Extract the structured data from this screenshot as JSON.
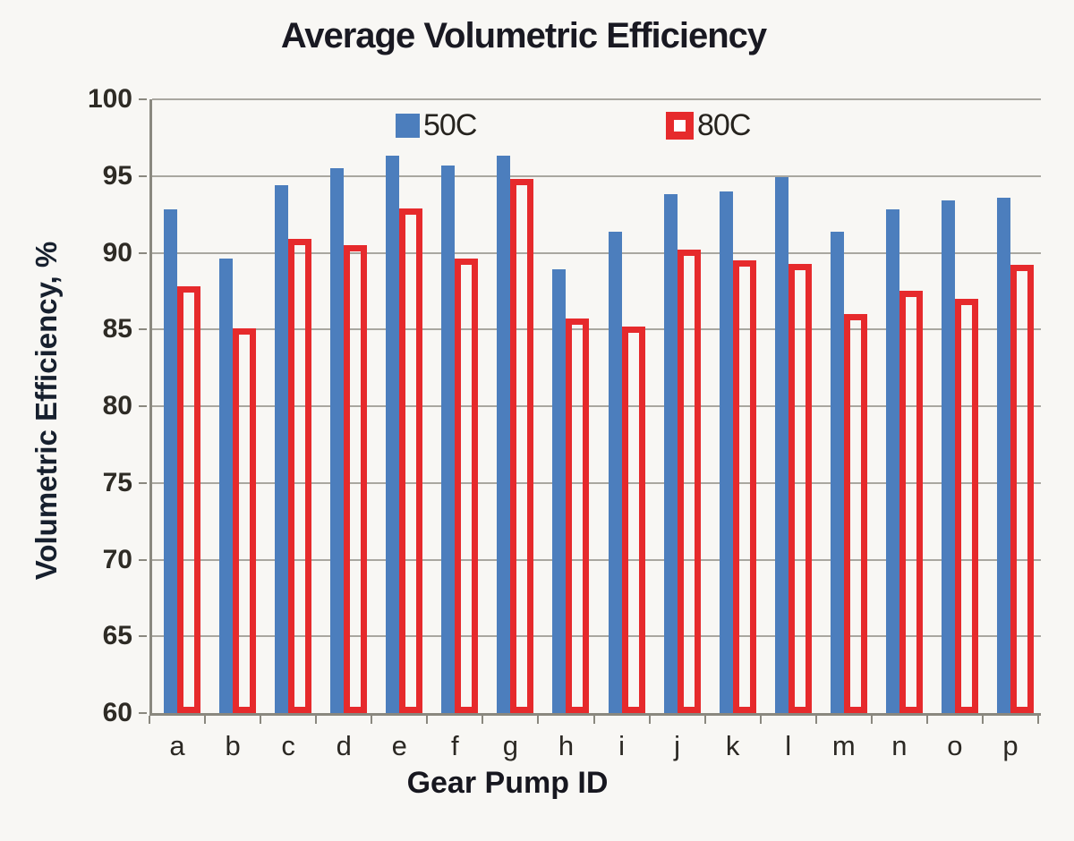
{
  "title": "Average Volumetric Efficiency",
  "chart_data": {
    "type": "bar",
    "title": "Average Volumetric Efficiency",
    "xlabel": "Gear Pump ID",
    "ylabel": "Volumetric Efficiency, %",
    "categories": [
      "a",
      "b",
      "c",
      "d",
      "e",
      "f",
      "g",
      "h",
      "i",
      "j",
      "k",
      "l",
      "m",
      "n",
      "o",
      "p"
    ],
    "series": [
      {
        "name": "50C",
        "style": "solid",
        "color": "#4c7ebd",
        "values": [
          92.8,
          89.6,
          94.4,
          95.5,
          96.3,
          95.7,
          96.3,
          88.9,
          91.4,
          93.8,
          94.0,
          94.9,
          91.4,
          92.8,
          93.4,
          93.6
        ]
      },
      {
        "name": "80C",
        "style": "hollow",
        "color": "#e62a2c",
        "values": [
          87.8,
          85.1,
          90.9,
          90.5,
          92.9,
          89.6,
          94.8,
          85.7,
          85.2,
          90.2,
          89.5,
          89.3,
          86.0,
          87.5,
          87.0,
          89.2
        ]
      }
    ],
    "ylim": [
      60,
      100
    ],
    "yticks": [
      60,
      65,
      70,
      75,
      80,
      85,
      90,
      95,
      100
    ],
    "grid": true,
    "legend_position": "top-inside"
  },
  "colors": {
    "background": "#f8f7f4",
    "gridline": "#a9a7a0",
    "axis": "#8a887f",
    "blue_series": "#4c7ebd",
    "red_series": "#e62a2c",
    "text": "#26231e"
  }
}
